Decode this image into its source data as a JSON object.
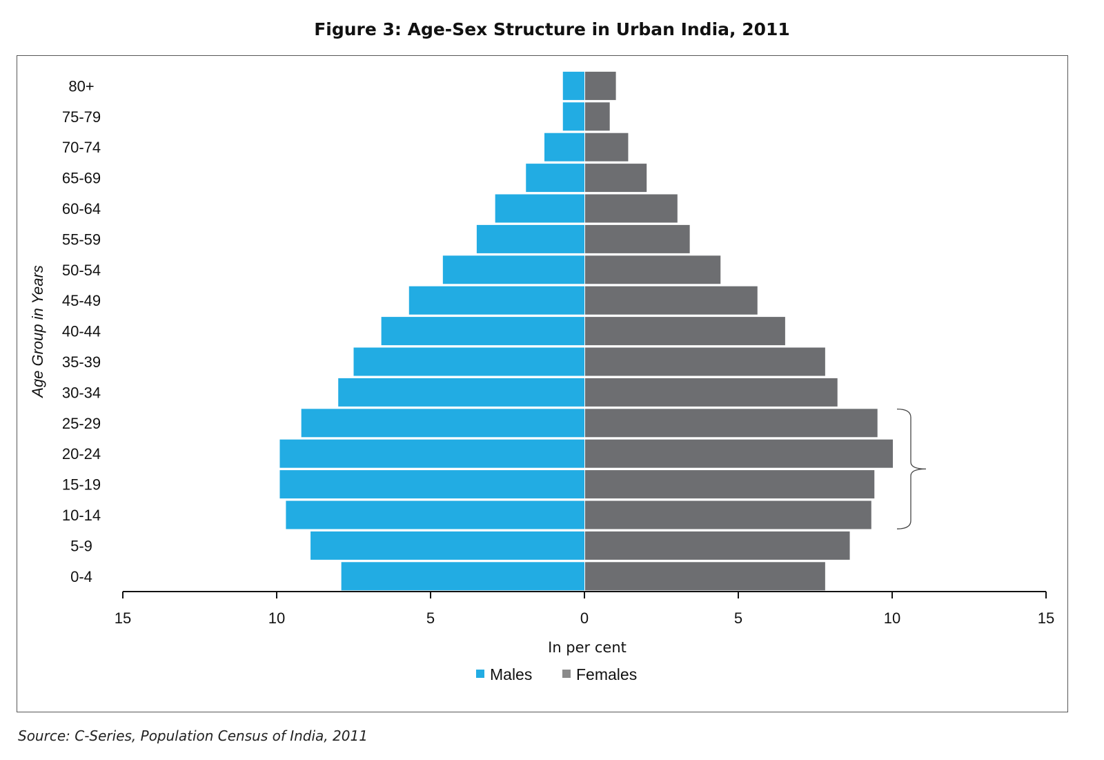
{
  "chart_data": {
    "type": "bar",
    "orientation": "horizontal",
    "title": "Figure 3: Age-Sex Structure in Urban India, 2011",
    "ylabel": "Age Group in Years",
    "xlabel": "In per cent",
    "categories": [
      "0-4",
      "5-9",
      "10-14",
      "15-19",
      "20-24",
      "25-29",
      "30-34",
      "35-39",
      "40-44",
      "45-49",
      "50-54",
      "55-59",
      "60-64",
      "65-69",
      "70-74",
      "75-79",
      "80+"
    ],
    "series": [
      {
        "name": "Males",
        "side": "left",
        "color": "#22ACE3",
        "values": [
          7.9,
          8.9,
          9.7,
          9.9,
          9.9,
          9.2,
          8.0,
          7.5,
          6.6,
          5.7,
          4.6,
          3.5,
          2.9,
          1.9,
          1.3,
          0.7,
          0.7
        ]
      },
      {
        "name": "Females",
        "side": "right",
        "color": "#6D6E71",
        "values": [
          7.8,
          8.6,
          9.3,
          9.4,
          10.0,
          9.5,
          8.2,
          7.8,
          6.5,
          5.6,
          4.4,
          3.4,
          3.0,
          2.0,
          1.4,
          0.8,
          1.0
        ]
      }
    ],
    "xticks": [
      15,
      10,
      5,
      0,
      5,
      10,
      15
    ],
    "xlim": [
      -15,
      15
    ],
    "legend_position": "bottom-center",
    "bracket_groups": [
      "10-14",
      "25-29"
    ]
  },
  "source": "Source: C-Series, Population Census of India, 2011"
}
